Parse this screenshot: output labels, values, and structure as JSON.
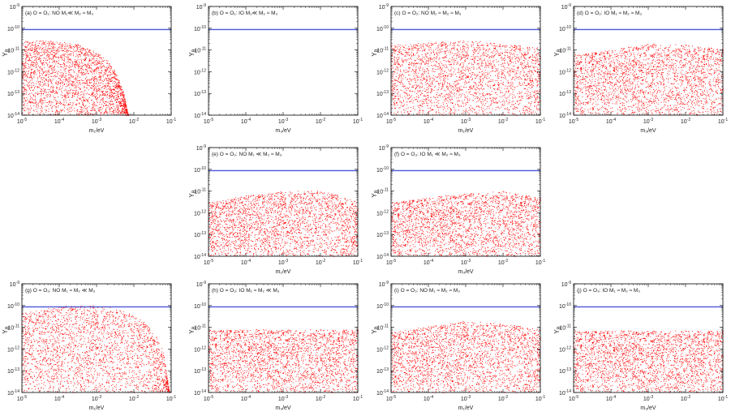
{
  "colors": {
    "points": "#ff0000",
    "bound": "#4a55d6",
    "frame": "#000000"
  },
  "axis": {
    "x_ticks": [
      "10^-5",
      "10^-4",
      "10^-3",
      "10^-2",
      "10^-1"
    ],
    "y_ticks": [
      "10^-9",
      "10^-10",
      "10^-11",
      "10^-12",
      "10^-13",
      "10^-14"
    ],
    "ylabel": "Y_B"
  },
  "chart_data": [
    {
      "id": "a",
      "type": "scatter",
      "title": "(a) O = O₁: NO  M₁≪ M₂ ≈ M₃",
      "xlabel": "m₁/eV",
      "xscale": "log",
      "yscale": "log",
      "xlim": [
        1e-05,
        0.1
      ],
      "ylim": [
        1e-14,
        1e-09
      ],
      "bound_line": 8.7e-11,
      "envelope": {
        "log_x": [
          -5,
          -4.5,
          -4,
          -3.5,
          -3,
          -2.7,
          -2.5,
          -2.3,
          -2.2,
          -2.15
        ],
        "log_y_max": [
          -10.6,
          -10.55,
          -10.6,
          -10.75,
          -11.1,
          -11.5,
          -12.0,
          -12.8,
          -13.6,
          -14.0
        ]
      }
    },
    {
      "id": "b",
      "type": "scatter",
      "title": "(b) O = O₁: IO  M₁≪ M₂ ≈ M₃",
      "xlabel": "m₃/eV",
      "xscale": "log",
      "yscale": "log",
      "xlim": [
        1e-05,
        0.1
      ],
      "ylim": [
        1e-14,
        1e-09
      ],
      "bound_line": 8.7e-11,
      "envelope": null
    },
    {
      "id": "c",
      "type": "scatter",
      "title": "(c) O = O₂: NO  M₁ ≈ M₂ ≈ M₃",
      "xlabel": "m₁/eV",
      "xscale": "log",
      "yscale": "log",
      "xlim": [
        1e-05,
        0.1
      ],
      "ylim": [
        1e-14,
        1e-09
      ],
      "bound_line": 8.7e-11,
      "envelope": {
        "log_x": [
          -5,
          -4,
          -3,
          -2.5,
          -2,
          -1.5,
          -1
        ],
        "log_y_max": [
          -10.75,
          -10.65,
          -10.55,
          -10.6,
          -10.7,
          -10.8,
          -10.9
        ]
      }
    },
    {
      "id": "d",
      "type": "scatter",
      "title": "(d) O = O₂: IO  M₁ ≈ M₂ ≈ M₃",
      "xlabel": "m₃/eV",
      "xscale": "log",
      "yscale": "log",
      "xlim": [
        1e-05,
        0.1
      ],
      "ylim": [
        1e-14,
        1e-09
      ],
      "bound_line": 8.7e-11,
      "envelope": {
        "log_x": [
          -5,
          -4,
          -3,
          -2,
          -1
        ],
        "log_y_max": [
          -11.2,
          -11.0,
          -10.7,
          -10.75,
          -10.95
        ]
      }
    },
    {
      "id": "e",
      "type": "scatter",
      "title": "(e) O = O₃: NO  M₁ ≪ M₂ ≈ M₃",
      "xlabel": "m₁/eV",
      "xscale": "log",
      "yscale": "log",
      "xlim": [
        1e-05,
        0.1
      ],
      "ylim": [
        1e-14,
        1e-09
      ],
      "bound_line": 8.7e-11,
      "envelope": {
        "log_x": [
          -5,
          -4,
          -3,
          -2,
          -1.5,
          -1
        ],
        "log_y_max": [
          -11.5,
          -11.2,
          -11.0,
          -10.95,
          -11.2,
          -11.5
        ]
      }
    },
    {
      "id": "f",
      "type": "scatter",
      "title": "(f) O = O₃: IO  M₁ ≪ M₂ ≈ M₃",
      "xlabel": "m₃/eV",
      "xscale": "log",
      "yscale": "log",
      "xlim": [
        1e-05,
        0.1
      ],
      "ylim": [
        1e-14,
        1e-09
      ],
      "bound_line": 8.7e-11,
      "envelope": {
        "log_x": [
          -5,
          -4,
          -3,
          -2,
          -1
        ],
        "log_y_max": [
          -11.5,
          -11.3,
          -11.1,
          -11.0,
          -11.3
        ]
      }
    },
    {
      "id": "g",
      "type": "scatter",
      "title": "(g) O = O₃: NO  M₁ ≈ M₂ ≪ M₃",
      "xlabel": "m₁/eV",
      "xscale": "log",
      "yscale": "log",
      "xlim": [
        1e-05,
        0.1
      ],
      "ylim": [
        1e-14,
        1e-09
      ],
      "bound_line": 8.7e-11,
      "envelope": {
        "log_x": [
          -5,
          -4,
          -3.5,
          -3,
          -2.5,
          -2,
          -1.7,
          -1.4,
          -1.2,
          -1.05
        ],
        "log_y_max": [
          -10.3,
          -10.05,
          -9.95,
          -10.0,
          -10.1,
          -10.4,
          -10.8,
          -11.4,
          -12.2,
          -14.0
        ]
      }
    },
    {
      "id": "h",
      "type": "scatter",
      "title": "(h) O = O₃: IO  M₁ ≈ M₂ ≪ M₃",
      "xlabel": "m₃/eV",
      "xscale": "log",
      "yscale": "log",
      "xlim": [
        1e-05,
        0.1
      ],
      "ylim": [
        1e-14,
        1e-09
      ],
      "bound_line": 8.7e-11,
      "envelope": {
        "log_x": [
          -5,
          -3,
          -1
        ],
        "log_y_max": [
          -11.1,
          -11.1,
          -11.1
        ]
      }
    },
    {
      "id": "i",
      "type": "scatter",
      "title": "(i) O = O₃: NO  M₁ ≈ M₂ ≈ M₃",
      "xlabel": "m₁/eV",
      "xscale": "log",
      "yscale": "log",
      "xlim": [
        1e-05,
        0.1
      ],
      "ylim": [
        1e-14,
        1e-09
      ],
      "bound_line": 8.7e-11,
      "envelope": {
        "log_x": [
          -5,
          -4,
          -3,
          -2,
          -1
        ],
        "log_y_max": [
          -11.2,
          -10.95,
          -10.7,
          -10.8,
          -11.1
        ]
      }
    },
    {
      "id": "j",
      "type": "scatter",
      "title": "(j) O = O₃: IO  M₁ ≈ M₂ ≈ M₃",
      "xlabel": "m₃/eV",
      "xscale": "log",
      "yscale": "log",
      "xlim": [
        1e-05,
        0.1
      ],
      "ylim": [
        1e-14,
        1e-09
      ],
      "bound_line": 8.7e-11,
      "envelope": {
        "log_x": [
          -5,
          -3,
          -1
        ],
        "log_y_max": [
          -11.15,
          -11.15,
          -11.15
        ]
      }
    }
  ]
}
